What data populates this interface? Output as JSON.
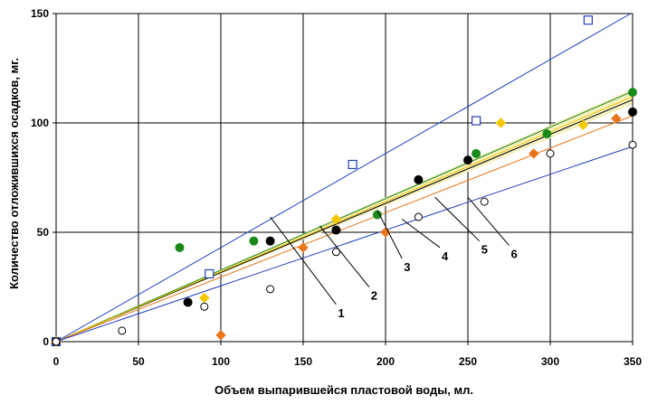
{
  "chart_data": {
    "type": "scatter",
    "title": "",
    "xlabel": "Объем выпарившейся пластовой воды, мл.",
    "ylabel": "Количество отложившихся осадков, мг.",
    "xlim": [
      0,
      350
    ],
    "ylim": [
      0,
      150
    ],
    "x_ticks": [
      "0",
      "50",
      "100",
      "150",
      "200",
      "250",
      "300",
      "350"
    ],
    "y_ticks": [
      "0",
      "50",
      "100",
      "150"
    ],
    "x_tick_values": [
      0,
      50,
      100,
      150,
      200,
      250,
      300,
      350
    ],
    "y_tick_values": [
      0,
      50,
      100,
      150
    ],
    "grid": true,
    "legend": "none",
    "series": [
      {
        "marker": "open-square",
        "color": "#1f3fbf",
        "points": [
          [
            0,
            0
          ],
          [
            93,
            31
          ],
          [
            180,
            81
          ],
          [
            255,
            101
          ],
          [
            323,
            147
          ]
        ],
        "trendline": {
          "slope": 0.43,
          "color": "#1f3fbf"
        }
      },
      {
        "marker": "filled-circle",
        "color": "#1a8a1a",
        "points": [
          [
            0,
            0
          ],
          [
            75,
            43
          ],
          [
            120,
            46
          ],
          [
            195,
            58
          ],
          [
            255,
            86
          ],
          [
            298,
            95
          ],
          [
            350,
            114
          ]
        ],
        "trendline": {
          "slope": 0.327,
          "color": "#1a8a1a"
        }
      },
      {
        "marker": "filled-circle",
        "color": "#000000",
        "points": [
          [
            0,
            0
          ],
          [
            80,
            18
          ],
          [
            130,
            46
          ],
          [
            170,
            51
          ],
          [
            220,
            74
          ],
          [
            250,
            83
          ],
          [
            350,
            105
          ]
        ],
        "trendline": {
          "slope": 0.316,
          "color": "#000000"
        }
      },
      {
        "marker": "filled-diamond",
        "color": "#f5c800",
        "points": [
          [
            0,
            0
          ],
          [
            90,
            20
          ],
          [
            170,
            56
          ],
          [
            270,
            100
          ],
          [
            320,
            99
          ]
        ],
        "trendline": {
          "slope": 0.32,
          "color": "#f5c800"
        }
      },
      {
        "marker": "filled-diamond",
        "color": "#e8761a",
        "points": [
          [
            0,
            0
          ],
          [
            100,
            3
          ],
          [
            150,
            43
          ],
          [
            200,
            50
          ],
          [
            290,
            86
          ],
          [
            340,
            102
          ]
        ],
        "trendline": {
          "slope": 0.295,
          "color": "#e8761a"
        }
      },
      {
        "marker": "open-circle",
        "color": "#000000",
        "points": [
          [
            0,
            0
          ],
          [
            40,
            5
          ],
          [
            90,
            16
          ],
          [
            130,
            24
          ],
          [
            170,
            41
          ],
          [
            220,
            57
          ],
          [
            260,
            64
          ],
          [
            300,
            86
          ],
          [
            350,
            90
          ]
        ],
        "trendline": {
          "slope": 0.255,
          "color": "#1f3fbf"
        }
      }
    ],
    "band": {
      "lower_slope": 0.31,
      "upper_slope": 0.33,
      "color": "#f5f0c0"
    },
    "callouts": [
      {
        "label": "1",
        "from": [
          130,
          57
        ],
        "to": [
          170,
          17
        ]
      },
      {
        "label": "2",
        "from": [
          160,
          53
        ],
        "to": [
          190,
          25
        ]
      },
      {
        "label": "3",
        "from": [
          195,
          60
        ],
        "to": [
          210,
          38
        ]
      },
      {
        "label": "4",
        "from": [
          210,
          56
        ],
        "to": [
          233,
          43
        ]
      },
      {
        "label": "5",
        "from": [
          230,
          66
        ],
        "to": [
          257,
          46
        ]
      },
      {
        "label": "6",
        "from": [
          250,
          66
        ],
        "to": [
          275,
          44
        ]
      }
    ]
  }
}
